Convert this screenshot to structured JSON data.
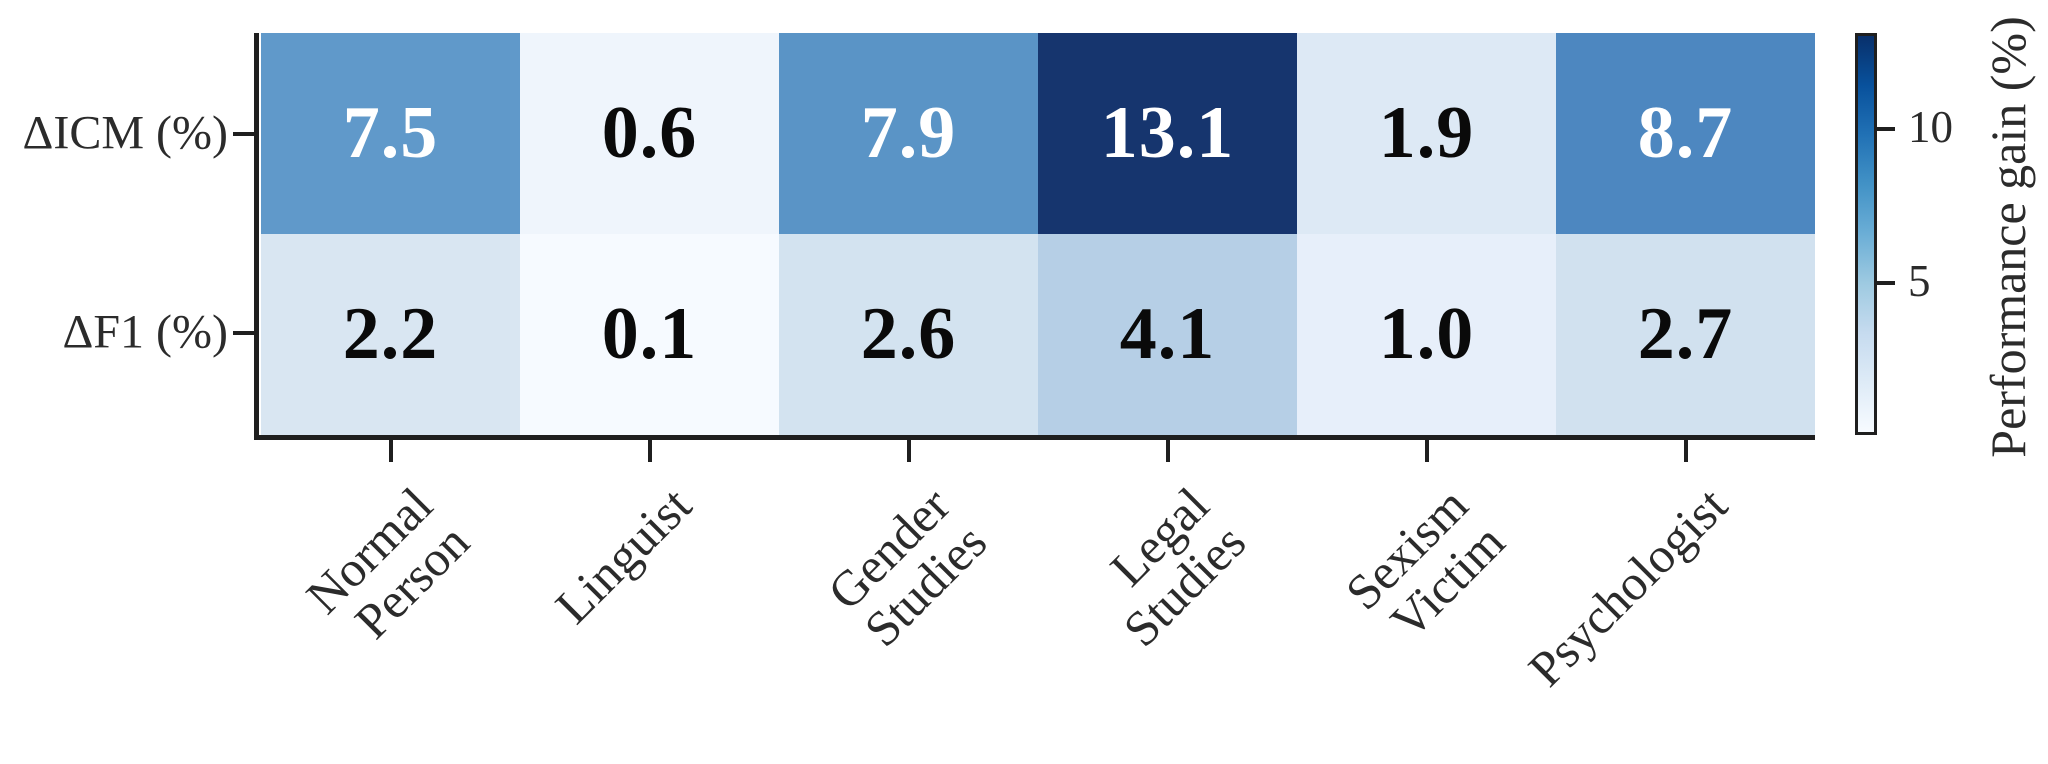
{
  "chart_data": {
    "type": "heatmap",
    "title": "",
    "categories": [
      "Normal\nPerson",
      "Linguist",
      "Gender\nStudies",
      "Legal\nStudies",
      "Sexism\nVictim",
      "Psychologist"
    ],
    "rows": [
      "ΔICM (%)",
      "ΔF1 (%)"
    ],
    "series": [
      {
        "name": "ΔICM (%)",
        "values": [
          7.5,
          0.6,
          7.9,
          13.1,
          1.9,
          8.7
        ]
      },
      {
        "name": "ΔF1 (%)",
        "values": [
          2.2,
          0.1,
          2.6,
          4.1,
          1.0,
          2.7
        ]
      }
    ],
    "value_labels": [
      [
        "7.5",
        "0.6",
        "7.9",
        "13.1",
        "1.9",
        "8.7"
      ],
      [
        "2.2",
        "0.1",
        "2.6",
        "4.1",
        "1.0",
        "2.7"
      ]
    ],
    "cell_colors": [
      [
        "#6099ca",
        "#eff5fc",
        "#5a94c6",
        "#16356e",
        "#dde9f5",
        "#4d87c0"
      ],
      [
        "#d9e6f2",
        "#f6faff",
        "#d3e3f0",
        "#b6cfe6",
        "#e7effa",
        "#d1e1ef"
      ]
    ],
    "cell_text_colors": [
      [
        "#ffffff",
        "#0a0a0a",
        "#ffffff",
        "#ffffff",
        "#0a0a0a",
        "#ffffff"
      ],
      [
        "#0a0a0a",
        "#0a0a0a",
        "#0a0a0a",
        "#0a0a0a",
        "#0a0a0a",
        "#0a0a0a"
      ]
    ],
    "colorbar": {
      "label": "Performance gain (%)",
      "ticks": [
        10,
        5
      ],
      "range": [
        0.1,
        13.1
      ],
      "colormap": "Blues",
      "position": "right"
    },
    "layout": {
      "grid": "off",
      "x_tick_rotation": 45,
      "legend": "none"
    }
  },
  "colors": {
    "background": "#ffffff",
    "spine": "#1f1f1f",
    "tick_label": "#2b2b2b",
    "colorbar_top": "#08306b",
    "colorbar_bottom": "#f7fbff"
  }
}
